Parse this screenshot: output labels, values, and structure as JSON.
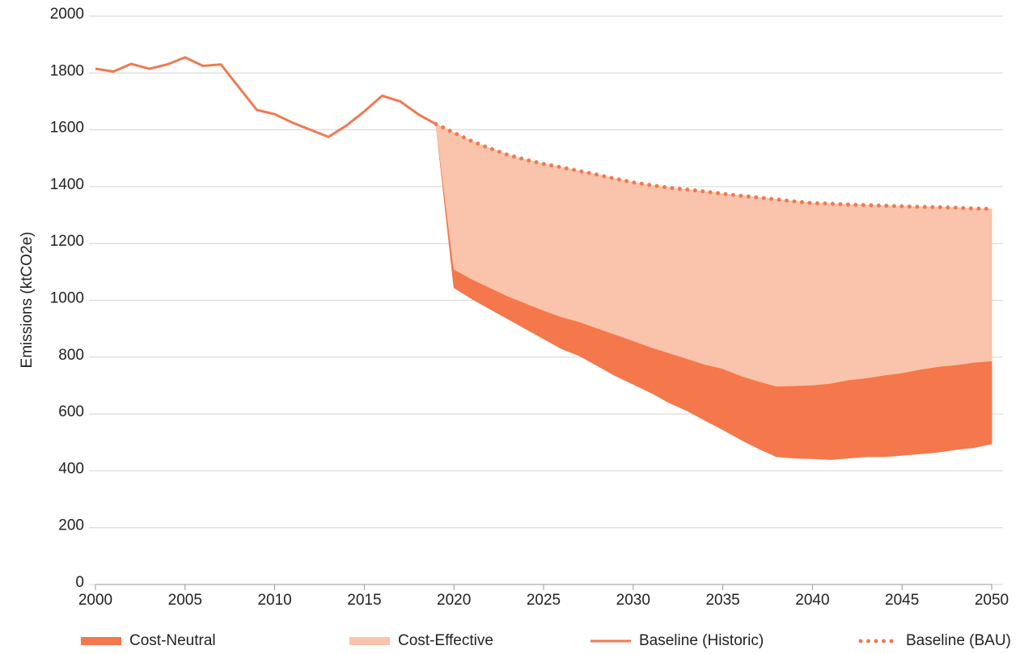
{
  "chart_data": {
    "type": "line",
    "y_label": "Emissions (ktCO2e)",
    "xlim": [
      2000,
      2050
    ],
    "xticks": [
      2000,
      2005,
      2010,
      2015,
      2020,
      2025,
      2030,
      2035,
      2040,
      2045,
      2050
    ],
    "ylim": [
      0,
      2000
    ],
    "yticks": [
      0,
      200,
      400,
      600,
      800,
      1000,
      1200,
      1400,
      1600,
      1800,
      2000
    ],
    "grid": true,
    "legend": "bottom",
    "series": [
      {
        "name": "Cost-Neutral",
        "style": "area",
        "fill_to": 1,
        "color": "#f4784b",
        "x": [
          2019,
          2020,
          2021,
          2022,
          2023,
          2024,
          2025,
          2026,
          2027,
          2028,
          2029,
          2030,
          2031,
          2032,
          2033,
          2034,
          2035,
          2036,
          2037,
          2038,
          2039,
          2040,
          2041,
          2042,
          2043,
          2044,
          2045,
          2046,
          2047,
          2048,
          2049,
          2050
        ],
        "values": [
          1620,
          1045,
          1005,
          970,
          935,
          900,
          865,
          830,
          805,
          770,
          735,
          705,
          675,
          640,
          612,
          578,
          545,
          510,
          478,
          450,
          445,
          443,
          440,
          445,
          450,
          450,
          455,
          460,
          466,
          475,
          482,
          495
        ]
      },
      {
        "name": "Cost-Effective",
        "style": "area",
        "fill_to": 3,
        "color": "#f9c4ab",
        "x": [
          2019,
          2020,
          2021,
          2022,
          2023,
          2024,
          2025,
          2026,
          2027,
          2028,
          2029,
          2030,
          2031,
          2032,
          2033,
          2034,
          2035,
          2036,
          2037,
          2038,
          2039,
          2040,
          2041,
          2042,
          2043,
          2044,
          2045,
          2046,
          2047,
          2048,
          2049,
          2050
        ],
        "values": [
          1620,
          1110,
          1075,
          1045,
          1015,
          990,
          965,
          942,
          925,
          902,
          880,
          858,
          835,
          815,
          795,
          775,
          760,
          735,
          715,
          698,
          700,
          702,
          708,
          720,
          727,
          737,
          745,
          757,
          767,
          773,
          782,
          787
        ]
      },
      {
        "name": "Baseline (Historic)",
        "style": "solid",
        "color": "#ef7a52",
        "x": [
          2000,
          2001,
          2002,
          2003,
          2004,
          2005,
          2006,
          2007,
          2008,
          2009,
          2010,
          2011,
          2012,
          2013,
          2014,
          2015,
          2016,
          2017,
          2018,
          2019
        ],
        "values": [
          1815,
          1805,
          1832,
          1815,
          1830,
          1855,
          1825,
          1830,
          1750,
          1670,
          1655,
          1625,
          1600,
          1575,
          1615,
          1665,
          1720,
          1700,
          1655,
          1620
        ]
      },
      {
        "name": "Baseline (BAU)",
        "style": "dotted",
        "color": "#ef7a52",
        "x": [
          2019,
          2020,
          2021,
          2022,
          2023,
          2024,
          2025,
          2026,
          2027,
          2028,
          2029,
          2030,
          2031,
          2032,
          2033,
          2034,
          2035,
          2036,
          2037,
          2038,
          2039,
          2040,
          2041,
          2042,
          2043,
          2044,
          2045,
          2046,
          2047,
          2048,
          2049,
          2050
        ],
        "values": [
          1620,
          1590,
          1560,
          1535,
          1512,
          1495,
          1480,
          1468,
          1455,
          1442,
          1428,
          1415,
          1405,
          1396,
          1390,
          1383,
          1375,
          1368,
          1362,
          1355,
          1348,
          1342,
          1340,
          1337,
          1335,
          1333,
          1331,
          1329,
          1328,
          1326,
          1323,
          1322
        ]
      }
    ]
  }
}
